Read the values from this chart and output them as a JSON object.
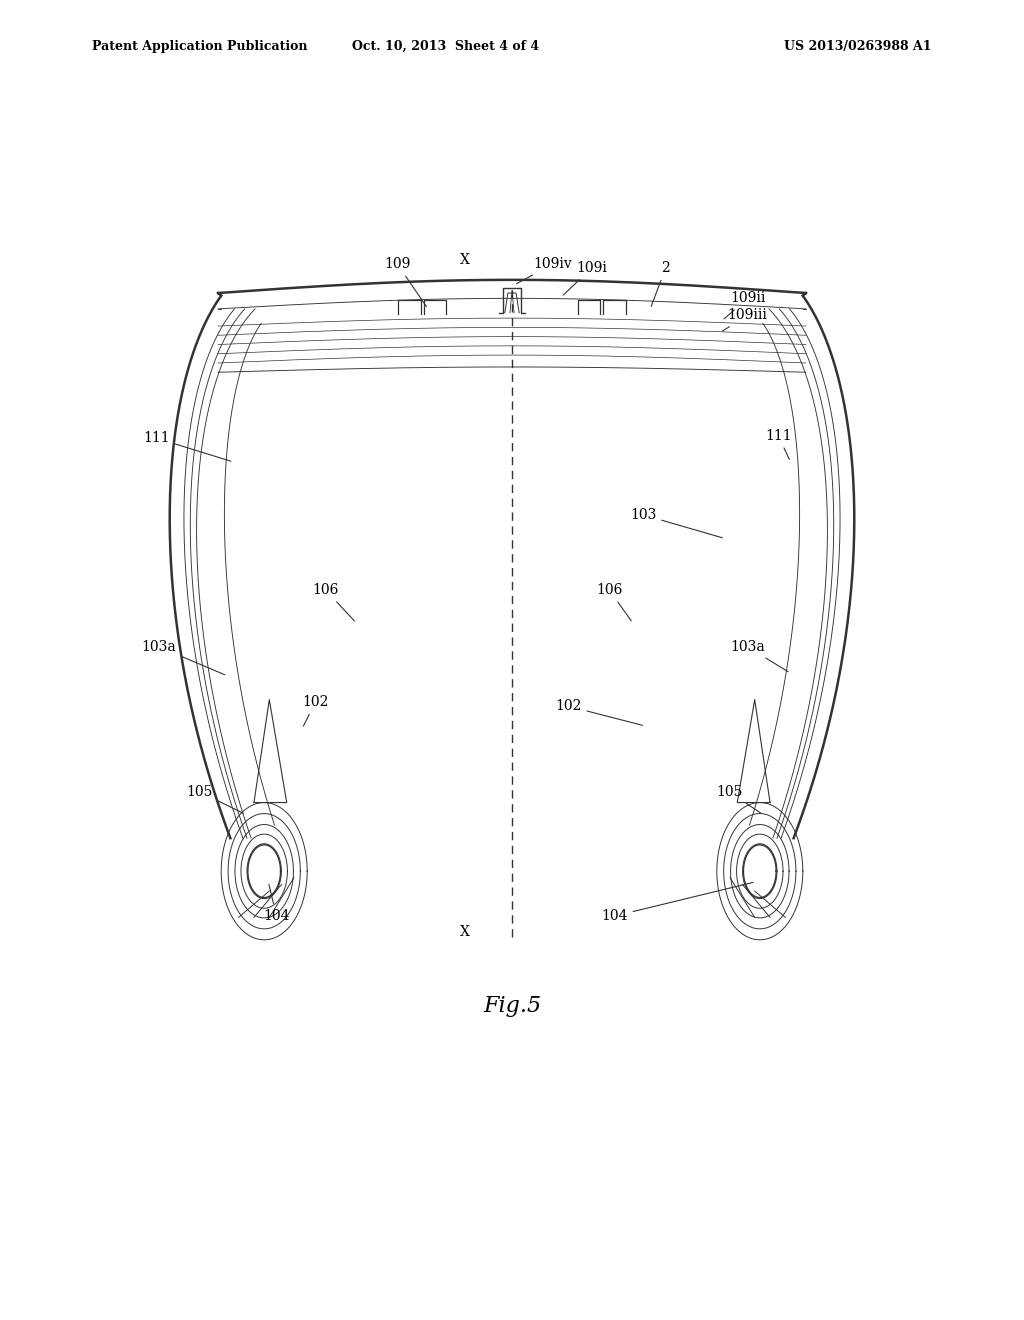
{
  "bg_color": "#ffffff",
  "line_color": "#333333",
  "header_left": "Patent Application Publication",
  "header_mid": "Oct. 10, 2013  Sheet 4 of 4",
  "header_right": "US 2013/0263988 A1",
  "fig_label": "Fig.5",
  "figsize": [
    10.24,
    13.2
  ],
  "dpi": 100
}
